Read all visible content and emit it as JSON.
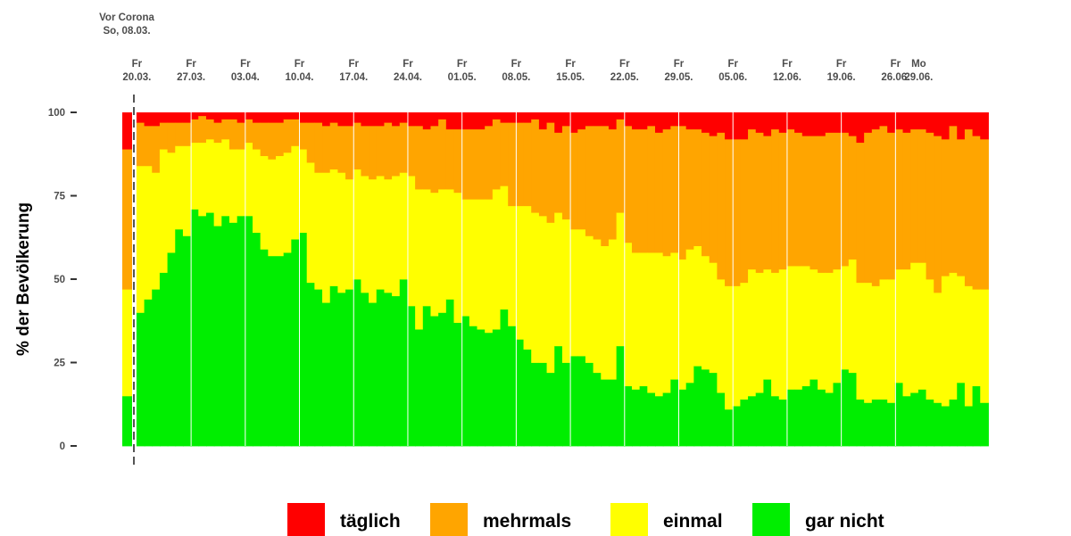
{
  "chart_data": {
    "type": "area",
    "stacked": true,
    "ylabel": "% der Bevölkerung",
    "ylim": [
      0,
      100
    ],
    "yticks": [
      0,
      25,
      50,
      75,
      100
    ],
    "grid": false,
    "legend_position": "bottom",
    "baseline": {
      "label_line1": "Vor Corona",
      "label_line2": "So, 08.03.",
      "values": {
        "gar_nicht": 15,
        "einmal": 32,
        "mehrmals": 42,
        "taeglich": 11
      }
    },
    "x_ticks": [
      {
        "day": 12,
        "line1": "Fr",
        "line2": "20.03."
      },
      {
        "day": 19,
        "line1": "Fr",
        "line2": "27.03."
      },
      {
        "day": 26,
        "line1": "Fr",
        "line2": "03.04."
      },
      {
        "day": 33,
        "line1": "Fr",
        "line2": "10.04."
      },
      {
        "day": 40,
        "line1": "Fr",
        "line2": "17.04."
      },
      {
        "day": 47,
        "line1": "Fr",
        "line2": "24.04."
      },
      {
        "day": 54,
        "line1": "Fr",
        "line2": "01.05."
      },
      {
        "day": 61,
        "line1": "Fr",
        "line2": "08.05."
      },
      {
        "day": 68,
        "line1": "Fr",
        "line2": "15.05."
      },
      {
        "day": 75,
        "line1": "Fr",
        "line2": "22.05."
      },
      {
        "day": 82,
        "line1": "Fr",
        "line2": "29.05."
      },
      {
        "day": 89,
        "line1": "Fr",
        "line2": "05.06."
      },
      {
        "day": 96,
        "line1": "Fr",
        "line2": "12.06."
      },
      {
        "day": 103,
        "line1": "Fr",
        "line2": "19.06."
      },
      {
        "day": 110,
        "line1": "Fr",
        "line2": "26.06."
      },
      {
        "day": 113,
        "line1": "Mo",
        "line2": "29.06."
      }
    ],
    "week_separators": [
      19,
      26,
      33,
      40,
      47,
      54,
      61,
      68,
      75,
      82,
      89,
      96,
      103,
      110
    ],
    "series": [
      {
        "name": "gar nicht",
        "key": "gar_nicht",
        "color": "#00ee00",
        "values": [
          40,
          44,
          47,
          52,
          58,
          65,
          63,
          71,
          69,
          70,
          66,
          69,
          67,
          69,
          69,
          64,
          59,
          57,
          57,
          58,
          62,
          64,
          49,
          47,
          43,
          48,
          46,
          47,
          50,
          46,
          43,
          47,
          46,
          45,
          50,
          42,
          35,
          42,
          39,
          40,
          44,
          37,
          39,
          36,
          35,
          34,
          35,
          41,
          36,
          32,
          29,
          25,
          25,
          22,
          30,
          25,
          27,
          27,
          25,
          22,
          20,
          20,
          30,
          18,
          17,
          18,
          16,
          15,
          16,
          20,
          17,
          19,
          24,
          23,
          22,
          16,
          11,
          12,
          14,
          15,
          16,
          20,
          15,
          14,
          17,
          17,
          18,
          20,
          17,
          16,
          19,
          23,
          22,
          14,
          13,
          14,
          14,
          13,
          19,
          15,
          16,
          17,
          14,
          13,
          12,
          14,
          19,
          12,
          18,
          13
        ]
      },
      {
        "name": "einmal",
        "key": "einmal",
        "color": "#ffff00",
        "values": [
          44,
          40,
          35,
          37,
          30,
          25,
          27,
          20,
          22,
          22,
          25,
          23,
          22,
          20,
          22,
          25,
          28,
          29,
          30,
          30,
          28,
          25,
          36,
          35,
          39,
          35,
          36,
          33,
          33,
          35,
          37,
          34,
          34,
          36,
          32,
          39,
          42,
          35,
          37,
          37,
          33,
          39,
          35,
          38,
          39,
          40,
          42,
          37,
          36,
          40,
          43,
          45,
          44,
          45,
          40,
          43,
          38,
          38,
          38,
          40,
          40,
          42,
          40,
          43,
          41,
          40,
          42,
          43,
          41,
          38,
          39,
          40,
          36,
          34,
          33,
          34,
          37,
          36,
          35,
          38,
          36,
          33,
          37,
          39,
          37,
          37,
          36,
          33,
          35,
          36,
          34,
          31,
          34,
          35,
          36,
          34,
          36,
          37,
          34,
          38,
          39,
          38,
          36,
          33,
          39,
          38,
          32,
          36,
          29,
          34
        ]
      },
      {
        "name": "mehrmals",
        "key": "mehrmals",
        "color": "#ffa500",
        "values": [
          13,
          12,
          14,
          8,
          9,
          7,
          7,
          7,
          8,
          6,
          6,
          6,
          9,
          8,
          7,
          8,
          10,
          11,
          10,
          10,
          8,
          8,
          12,
          15,
          14,
          14,
          14,
          16,
          14,
          15,
          16,
          15,
          17,
          15,
          15,
          15,
          19,
          18,
          20,
          21,
          18,
          19,
          21,
          21,
          21,
          22,
          21,
          19,
          25,
          25,
          25,
          28,
          26,
          30,
          24,
          28,
          29,
          30,
          33,
          34,
          36,
          33,
          28,
          35,
          37,
          37,
          38,
          36,
          38,
          38,
          40,
          36,
          35,
          37,
          38,
          44,
          44,
          44,
          43,
          42,
          42,
          40,
          43,
          41,
          41,
          40,
          39,
          40,
          41,
          42,
          41,
          40,
          37,
          42,
          45,
          47,
          46,
          44,
          42,
          41,
          40,
          40,
          44,
          47,
          41,
          44,
          41,
          47,
          46,
          45
        ]
      },
      {
        "name": "täglich",
        "key": "taeglich",
        "color": "#ff0000",
        "values": [
          3,
          4,
          4,
          3,
          3,
          3,
          3,
          2,
          1,
          2,
          3,
          2,
          2,
          3,
          2,
          3,
          3,
          3,
          3,
          2,
          2,
          3,
          3,
          3,
          4,
          3,
          4,
          4,
          3,
          4,
          4,
          4,
          3,
          4,
          3,
          4,
          4,
          5,
          4,
          2,
          5,
          5,
          5,
          5,
          5,
          4,
          2,
          3,
          3,
          3,
          3,
          2,
          5,
          3,
          6,
          4,
          6,
          5,
          4,
          4,
          4,
          5,
          2,
          4,
          5,
          5,
          4,
          6,
          5,
          4,
          4,
          5,
          5,
          6,
          7,
          6,
          8,
          8,
          8,
          5,
          6,
          7,
          5,
          6,
          5,
          6,
          7,
          7,
          7,
          6,
          6,
          6,
          7,
          9,
          6,
          5,
          4,
          6,
          5,
          6,
          5,
          5,
          6,
          7,
          8,
          4,
          8,
          5,
          7,
          8
        ]
      }
    ],
    "legend": [
      {
        "label": "täglich",
        "color": "#ff0000"
      },
      {
        "label": "mehrmals",
        "color": "#ffa500"
      },
      {
        "label": "einmal",
        "color": "#ffff00"
      },
      {
        "label": "gar nicht",
        "color": "#00ee00"
      }
    ]
  }
}
